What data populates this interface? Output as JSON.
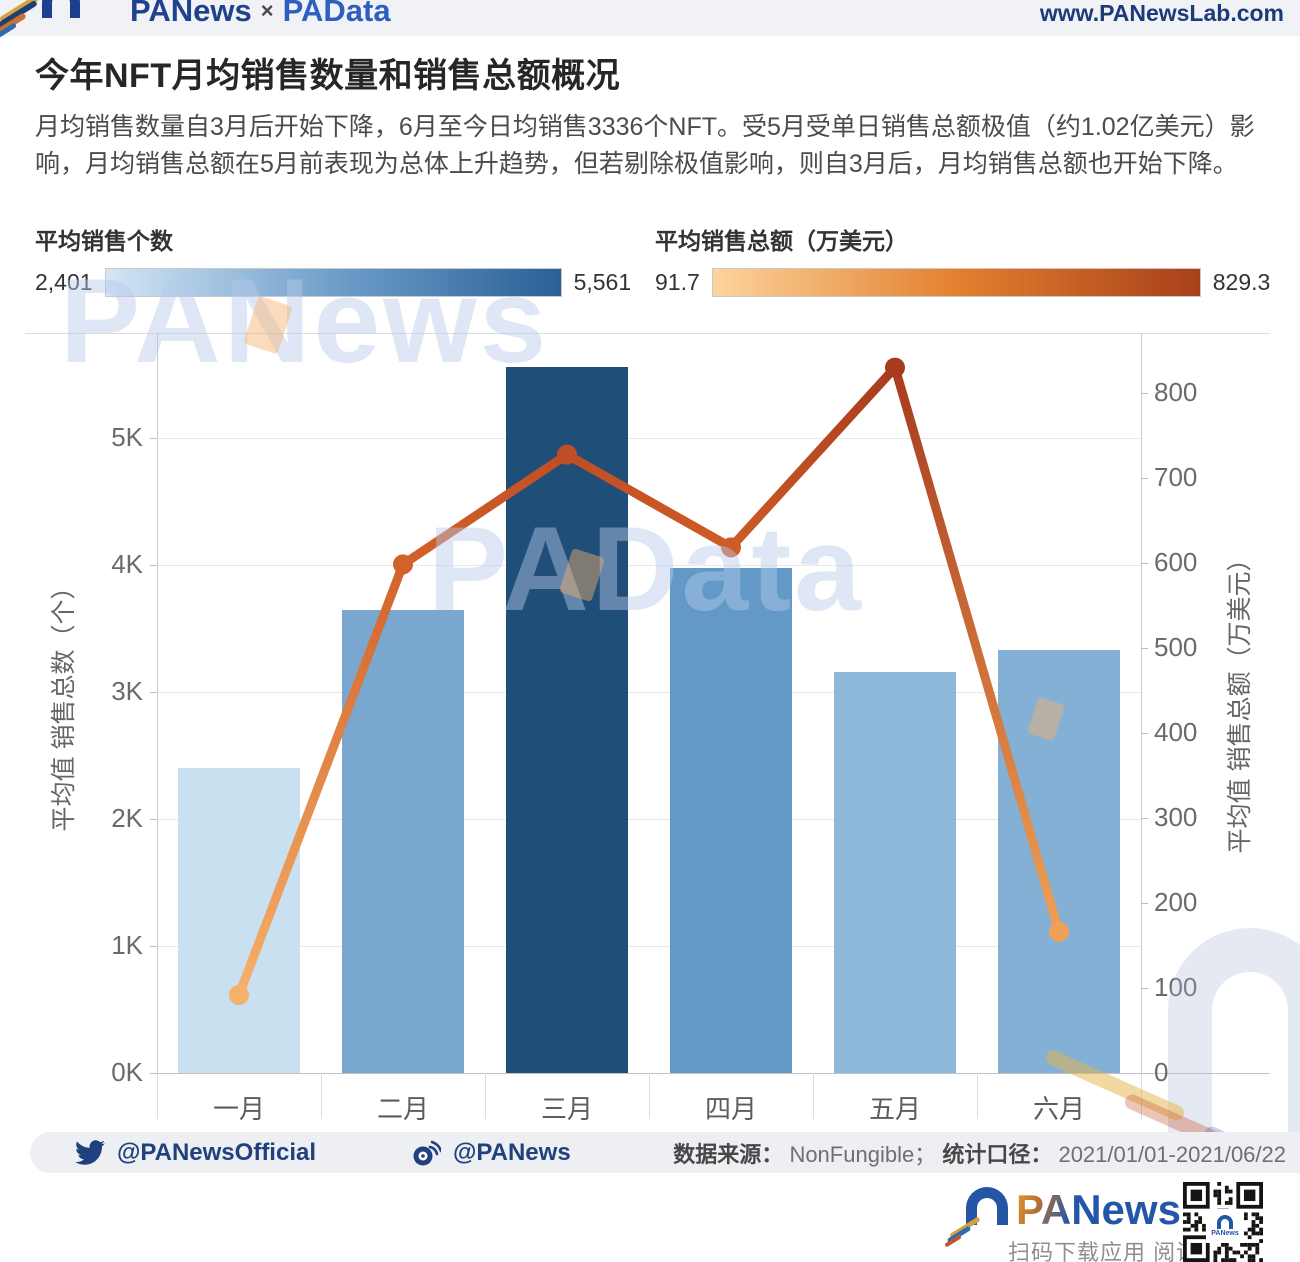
{
  "header": {
    "brand": "PANews",
    "brand_sep": "×",
    "brand2": "PAData",
    "website": "www.PANewsLab.com"
  },
  "title": "今年NFT月均销售数量和销售总额概况",
  "description": "月均销售数量自3月后开始下降，6月至今日均销售3336个NFT。受5月受单日销售总额极值（约1.02亿美元）影响，月均销售总额在5月前表现为总体上升趋势，但若剔除极值影响，则自3月后，月均销售总额也开始下降。",
  "legend_bars": {
    "label": "平均销售个数",
    "min": "2,401",
    "max": "5,561",
    "color_min": "#d3e6f5",
    "color_mid": "#6f9fca",
    "color_max": "#2a6097"
  },
  "legend_line": {
    "label": "平均销售总额（万美元）",
    "min": "91.7",
    "max": "829.3",
    "color_min": "#fcd49c",
    "color_mid": "#e2802f",
    "color_max": "#a84019"
  },
  "chart_data": {
    "type": "bar",
    "categories": [
      "一月",
      "二月",
      "三月",
      "四月",
      "五月",
      "六月"
    ],
    "series": [
      {
        "name": "平均销售个数",
        "type": "bar",
        "axis": "left",
        "values": [
          2401,
          3646,
          5561,
          3976,
          3157,
          3336
        ],
        "colors": [
          "#c9e0f1",
          "#79a7cf",
          "#1f4e79",
          "#6299c6",
          "#8db8da",
          "#84b0d5"
        ]
      },
      {
        "name": "平均销售总额（万美元）",
        "type": "line",
        "axis": "right",
        "values": [
          91.7,
          598,
          727,
          618,
          829.3,
          166
        ],
        "colors": [
          "#f5b169",
          "#d2622a",
          "#c04e24",
          "#cd5c27",
          "#a83b1e",
          "#efa055"
        ]
      }
    ],
    "left_axis": {
      "title": "平均值 销售总数（个）",
      "tick_labels": [
        "0K",
        "1K",
        "2K",
        "3K",
        "4K",
        "5K"
      ],
      "tick_values": [
        0,
        1000,
        2000,
        3000,
        4000,
        5000
      ],
      "range": [
        0,
        5830
      ]
    },
    "right_axis": {
      "title": "平均值 销售总额（万美元）",
      "tick_labels": [
        "0",
        "100",
        "200",
        "300",
        "400",
        "500",
        "600",
        "700",
        "800"
      ],
      "tick_values": [
        0,
        100,
        200,
        300,
        400,
        500,
        600,
        700,
        800
      ],
      "range": [
        0,
        870
      ]
    },
    "grid": true,
    "legend_position": "top"
  },
  "watermarks": {
    "top": "PANews",
    "middle": "PAData"
  },
  "footer": {
    "twitter": "@PANewsOfficial",
    "weibo": "@PANews",
    "source_label": "数据来源：",
    "source_value": "NonFungible；",
    "scope_label": "统计口径：",
    "scope_value": "2021/01/01-2021/06/22"
  },
  "bottom": {
    "logo": "PANews",
    "caption": "扫码下载应用 阅读原文"
  }
}
